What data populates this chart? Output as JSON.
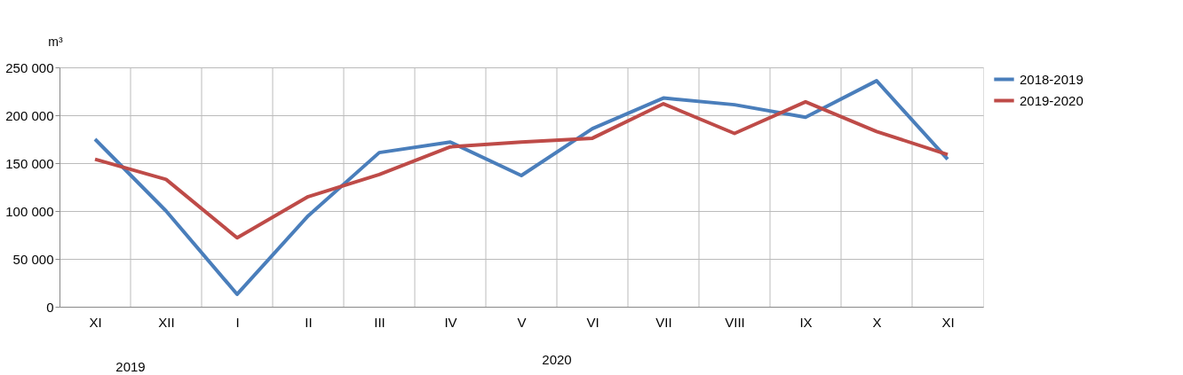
{
  "chart_data": {
    "type": "line",
    "ylabel": "m³",
    "categories": [
      "XI",
      "XII",
      "I",
      "II",
      "III",
      "IV",
      "V",
      "VI",
      "VII",
      "VIII",
      "IX",
      "X",
      "XI"
    ],
    "series": [
      {
        "name": "2018-2019",
        "color": "#4a7ebb",
        "values": [
          175000,
          100000,
          13000,
          95000,
          161000,
          172000,
          137000,
          186000,
          218000,
          211000,
          198000,
          236000,
          154000
        ]
      },
      {
        "name": "2019-2020",
        "color": "#be4b48",
        "values": [
          154000,
          133000,
          72000,
          115000,
          138000,
          167000,
          172000,
          176000,
          212000,
          181000,
          214000,
          183000,
          159000
        ]
      }
    ],
    "ylim": [
      0,
      250000
    ],
    "yticks": [
      {
        "value": 0,
        "label": "0"
      },
      {
        "value": 50000,
        "label": "50 000"
      },
      {
        "value": 100000,
        "label": "100 000"
      },
      {
        "value": 150000,
        "label": "150 000"
      },
      {
        "value": 200000,
        "label": "200 000"
      },
      {
        "value": 250000,
        "label": "250 000"
      }
    ],
    "annotations": [
      "2019",
      "2020"
    ],
    "grid": true,
    "legend": "right",
    "marker": "none",
    "line_style": "solid"
  }
}
